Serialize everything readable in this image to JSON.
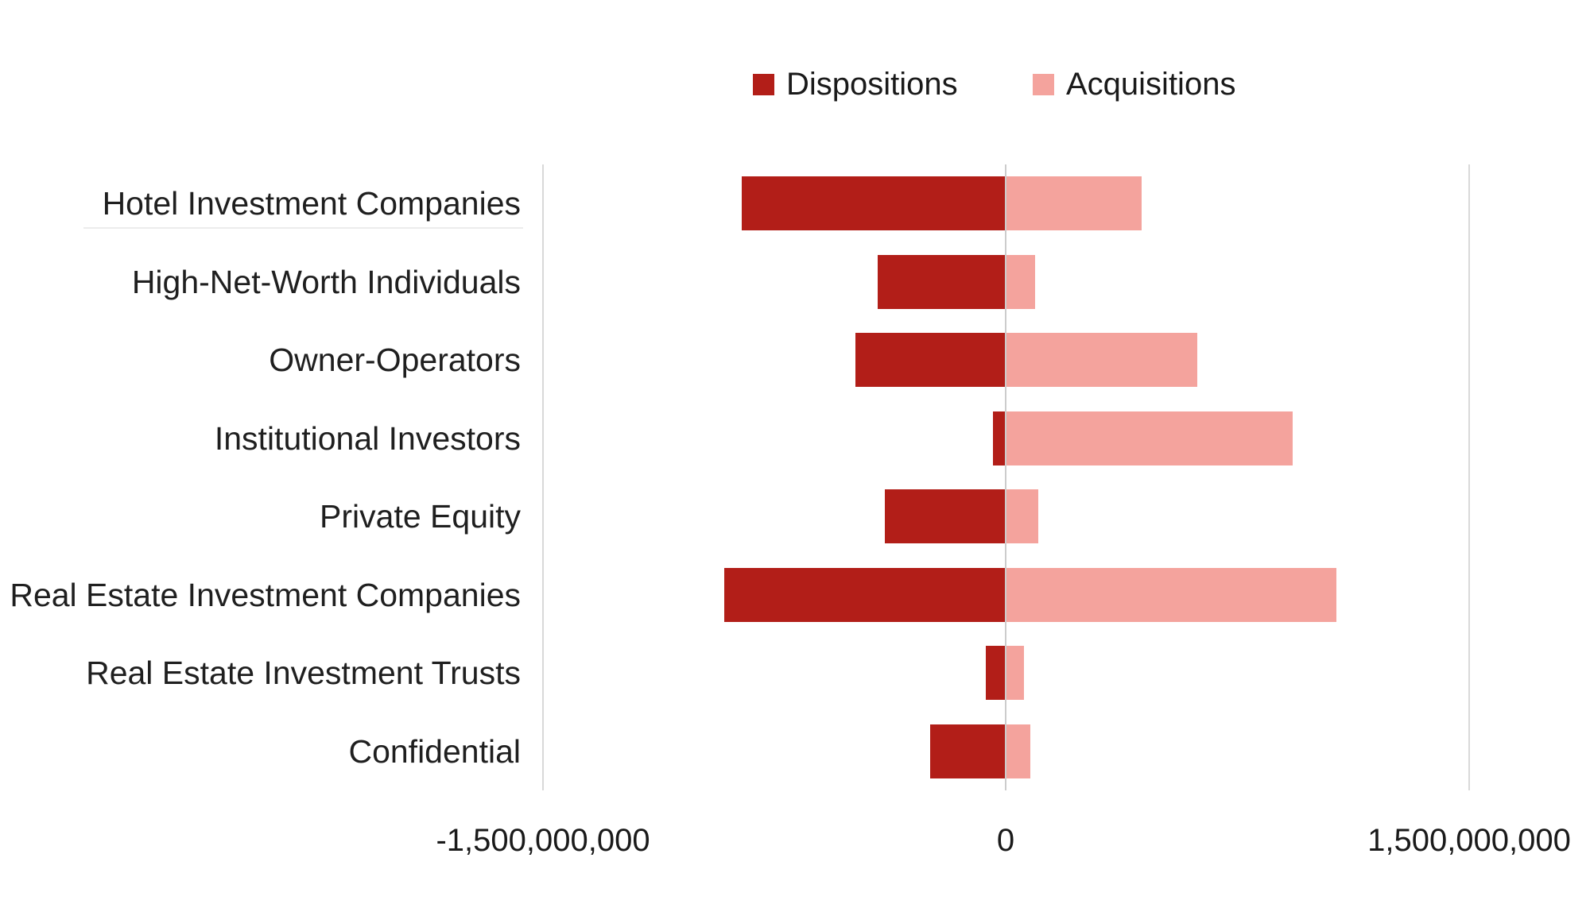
{
  "legend": [
    {
      "label": "Dispositions",
      "color": "#B21E18"
    },
    {
      "label": "Acquisitions",
      "color": "#F4A39D"
    }
  ],
  "chart_data": {
    "type": "bar",
    "orientation": "horizontal-diverging",
    "title": "",
    "xlabel": "",
    "ylabel": "",
    "categories": [
      "Hotel Investment Companies",
      "High-Net-Worth Individuals",
      "Owner-Operators",
      "Institutional Investors",
      "Private Equity",
      "Real Estate Investment Companies",
      "Real Estate Investment Trusts",
      "Confidential"
    ],
    "series": [
      {
        "name": "Dispositions",
        "color": "#B21E18",
        "values": [
          -855000000,
          -415000000,
          -485000000,
          -40000000,
          -390000000,
          -910000000,
          -65000000,
          -245000000
        ]
      },
      {
        "name": "Acquisitions",
        "color": "#F4A39D",
        "values": [
          440000000,
          95000000,
          620000000,
          930000000,
          105000000,
          1070000000,
          60000000,
          80000000
        ]
      }
    ],
    "xlim": [
      -1500000000,
      1500000000
    ],
    "x_ticks": [
      "-1,500,000,000",
      "0",
      "1,500,000,000"
    ],
    "x_tick_values": [
      -1500000000,
      0,
      1500000000
    ],
    "legend_position": "top",
    "grid": "vertical",
    "gridline_color": "#D9D9D9",
    "text_color": "#1A1A1A"
  }
}
